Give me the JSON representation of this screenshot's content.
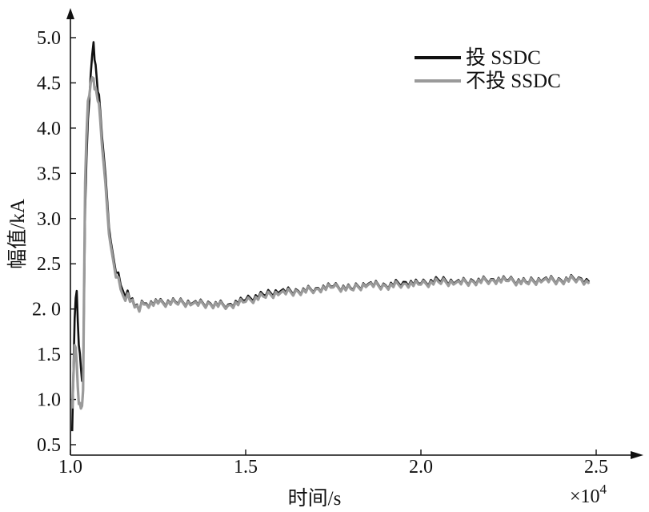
{
  "chart_data": {
    "type": "line",
    "title": "",
    "xlabel": "时间/s",
    "ylabel": "幅值/kA",
    "x_multiplier_label": "×10",
    "x_multiplier_exponent": "4",
    "xlim": [
      1.0,
      2.6
    ],
    "ylim": [
      0.5,
      5.2
    ],
    "xticks": [
      "1.0",
      "1.5",
      "2.0",
      "2.5"
    ],
    "yticks": [
      "0.5",
      "1.0",
      "1.5",
      "2. 0",
      "2.5",
      "3.0",
      "3.5",
      "4.0",
      "4.5",
      "5.0"
    ],
    "grid": false,
    "legend_position": "top-right",
    "series": [
      {
        "name": "投 SSDC",
        "color": "#111111",
        "x": [
          1.005,
          1.012,
          1.018,
          1.024,
          1.03,
          1.036,
          1.042,
          1.05,
          1.058,
          1.066,
          1.072,
          1.078,
          1.085,
          1.095,
          1.105,
          1.115,
          1.13,
          1.15,
          1.17,
          1.19,
          1.21,
          1.25,
          1.3,
          1.35,
          1.4,
          1.45,
          1.5,
          1.55,
          1.6,
          1.65,
          1.7,
          1.75,
          1.8,
          1.85,
          1.9,
          1.95,
          2.0,
          2.05,
          2.1,
          2.15,
          2.2,
          2.25,
          2.3,
          2.35,
          2.4,
          2.45,
          2.48
        ],
        "y": [
          0.65,
          1.9,
          2.2,
          1.6,
          1.35,
          1.2,
          3.1,
          4.1,
          4.6,
          4.95,
          4.7,
          4.4,
          4.2,
          3.7,
          3.2,
          2.75,
          2.4,
          2.2,
          2.1,
          2.05,
          2.06,
          2.07,
          2.08,
          2.07,
          2.06,
          2.05,
          2.1,
          2.16,
          2.2,
          2.2,
          2.23,
          2.25,
          2.23,
          2.28,
          2.26,
          2.3,
          2.28,
          2.32,
          2.3,
          2.31,
          2.33,
          2.32,
          2.3,
          2.33,
          2.32,
          2.35,
          2.3
        ]
      },
      {
        "name": "不投 SSDC",
        "color": "#9a9a9a",
        "x": [
          1.005,
          1.012,
          1.018,
          1.024,
          1.03,
          1.036,
          1.042,
          1.05,
          1.058,
          1.066,
          1.072,
          1.078,
          1.085,
          1.095,
          1.105,
          1.115,
          1.13,
          1.15,
          1.17,
          1.19,
          1.21,
          1.25,
          1.3,
          1.35,
          1.4,
          1.45,
          1.5,
          1.55,
          1.6,
          1.65,
          1.7,
          1.75,
          1.8,
          1.85,
          1.9,
          1.95,
          2.0,
          2.05,
          2.1,
          2.15,
          2.2,
          2.25,
          2.3,
          2.35,
          2.4,
          2.45,
          2.48
        ],
        "y": [
          0.9,
          1.6,
          1.4,
          0.95,
          0.9,
          1.1,
          3.4,
          4.3,
          4.5,
          4.55,
          4.45,
          4.3,
          4.1,
          3.6,
          3.1,
          2.7,
          2.35,
          2.15,
          2.08,
          2.04,
          2.05,
          2.06,
          2.07,
          2.06,
          2.05,
          2.04,
          2.08,
          2.14,
          2.18,
          2.19,
          2.22,
          2.24,
          2.22,
          2.27,
          2.25,
          2.28,
          2.27,
          2.3,
          2.29,
          2.3,
          2.32,
          2.31,
          2.29,
          2.32,
          2.31,
          2.34,
          2.28
        ]
      }
    ]
  }
}
